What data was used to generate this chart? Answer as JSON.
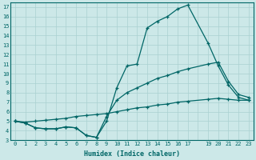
{
  "xlabel": "Humidex (Indice chaleur)",
  "bg_color": "#cce8e8",
  "line_color": "#006666",
  "grid_color": "#aad0d0",
  "xlim": [
    -0.5,
    23.5
  ],
  "ylim": [
    3,
    17.5
  ],
  "yticks": [
    3,
    4,
    5,
    6,
    7,
    8,
    9,
    10,
    11,
    12,
    13,
    14,
    15,
    16,
    17
  ],
  "line1_x": [
    0,
    1,
    2,
    3,
    4,
    5,
    6,
    7,
    8,
    9,
    10,
    11,
    12,
    13,
    14,
    15,
    16,
    17,
    19,
    20,
    21,
    22,
    23
  ],
  "line1_y": [
    5.0,
    4.8,
    4.3,
    4.2,
    4.2,
    4.4,
    4.3,
    3.5,
    3.3,
    5.0,
    8.5,
    10.8,
    11.0,
    14.8,
    15.5,
    16.0,
    16.8,
    17.2,
    13.2,
    10.8,
    8.8,
    7.5,
    7.2
  ],
  "line2_x": [
    0,
    1,
    2,
    3,
    4,
    5,
    6,
    7,
    8,
    9,
    10,
    11,
    12,
    13,
    14,
    15,
    16,
    17,
    19,
    20,
    21,
    22,
    23
  ],
  "line2_y": [
    5.0,
    4.8,
    4.3,
    4.2,
    4.2,
    4.4,
    4.3,
    3.5,
    3.3,
    5.5,
    7.2,
    8.0,
    8.5,
    9.0,
    9.5,
    9.8,
    10.2,
    10.5,
    11.0,
    11.2,
    9.2,
    7.8,
    7.5
  ],
  "line3_x": [
    0,
    1,
    2,
    3,
    4,
    5,
    6,
    7,
    8,
    9,
    10,
    11,
    12,
    13,
    14,
    15,
    16,
    17,
    19,
    20,
    21,
    22,
    23
  ],
  "line3_y": [
    5.0,
    4.9,
    5.0,
    5.1,
    5.2,
    5.3,
    5.5,
    5.6,
    5.7,
    5.8,
    6.0,
    6.2,
    6.4,
    6.5,
    6.7,
    6.8,
    7.0,
    7.1,
    7.3,
    7.4,
    7.3,
    7.2,
    7.2
  ],
  "xtick_labels": [
    "0",
    "1",
    "2",
    "3",
    "4",
    "5",
    "6",
    "7",
    "8",
    "9",
    "10",
    "11",
    "12",
    "13",
    "14",
    "15",
    "16",
    "17",
    "",
    "19",
    "20",
    "21",
    "22",
    "23"
  ]
}
